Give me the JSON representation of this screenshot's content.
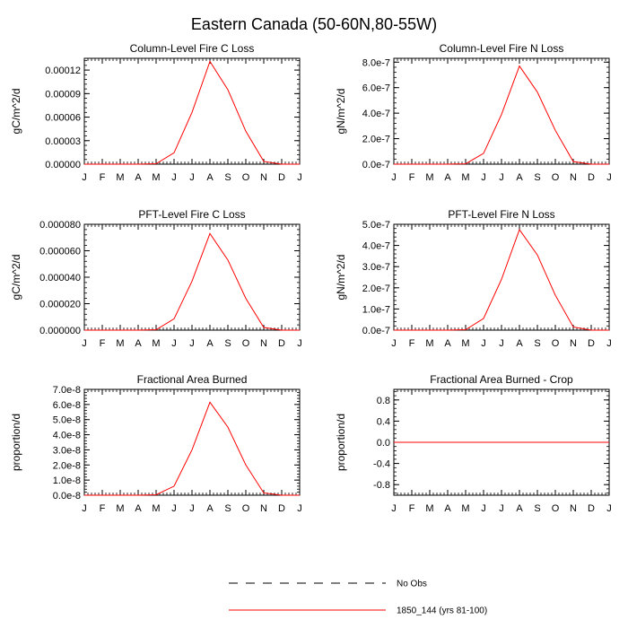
{
  "figure_title": "Eastern Canada (50-60N,80-55W)",
  "legend": [
    {
      "label": "No Obs",
      "color": "#000000",
      "style": "dashed"
    },
    {
      "label": "1850_144 (yrs 81-100)",
      "color": "#ff0000",
      "style": "solid"
    }
  ],
  "chart_data": [
    {
      "type": "line",
      "title": "Column-Level Fire C Loss",
      "ylabel": "gC/m^2/d",
      "xlabel": "",
      "x_ticks": [
        "J",
        "F",
        "M",
        "A",
        "M",
        "J",
        "J",
        "A",
        "S",
        "O",
        "N",
        "D",
        "J"
      ],
      "y_ticks": [
        "0.00000",
        "0.00003",
        "0.00006",
        "0.00009",
        "0.00012"
      ],
      "ylim": [
        0,
        0.000135
      ],
      "series": [
        {
          "name": "1850_144 (yrs 81-100)",
          "color": "#ff0000",
          "values": [
            0,
            0,
            0,
            0,
            5e-07,
            1.45e-05,
            6.6e-05,
            0.000131,
            9.5e-05,
            4.2e-05,
            3.5e-06,
            0,
            0
          ]
        }
      ]
    },
    {
      "type": "line",
      "title": "Column-Level Fire N Loss",
      "ylabel": "gN/m^2/d",
      "xlabel": "",
      "x_ticks": [
        "J",
        "F",
        "M",
        "A",
        "M",
        "J",
        "J",
        "A",
        "S",
        "O",
        "N",
        "D",
        "J"
      ],
      "y_ticks": [
        "0.0e-7",
        "2.0e-7",
        "4.0e-7",
        "6.0e-7",
        "8.0e-7"
      ],
      "ylim": [
        0,
        8.3e-07
      ],
      "series": [
        {
          "name": "1850_144 (yrs 81-100)",
          "color": "#ff0000",
          "values": [
            0,
            0,
            0,
            0,
            3e-09,
            8.5e-08,
            3.9e-07,
            7.7e-07,
            5.65e-07,
            2.65e-07,
            2e-08,
            0,
            0
          ]
        }
      ]
    },
    {
      "type": "line",
      "title": "PFT-Level Fire C Loss",
      "ylabel": "gC/m^2/d",
      "xlabel": "",
      "x_ticks": [
        "J",
        "F",
        "M",
        "A",
        "M",
        "J",
        "J",
        "A",
        "S",
        "O",
        "N",
        "D",
        "J"
      ],
      "y_ticks": [
        "0.000000",
        "0.000020",
        "0.000040",
        "0.000060",
        "0.000080"
      ],
      "ylim": [
        0,
        8e-05
      ],
      "series": [
        {
          "name": "1850_144 (yrs 81-100)",
          "color": "#ff0000",
          "values": [
            0,
            0,
            0,
            0,
            3e-07,
            8.5e-06,
            3.7e-05,
            7.3e-05,
            5.3e-05,
            2.4e-05,
            2e-06,
            0,
            0
          ]
        }
      ]
    },
    {
      "type": "line",
      "title": "PFT-Level Fire N Loss",
      "ylabel": "gN/m^2/d",
      "xlabel": "",
      "x_ticks": [
        "J",
        "F",
        "M",
        "A",
        "M",
        "J",
        "J",
        "A",
        "S",
        "O",
        "N",
        "D",
        "J"
      ],
      "y_ticks": [
        "0.0e-7",
        "1.0e-7",
        "2.0e-7",
        "3.0e-7",
        "4.0e-7",
        "5.0e-7"
      ],
      "ylim": [
        0,
        5e-07
      ],
      "series": [
        {
          "name": "1850_144 (yrs 81-100)",
          "color": "#ff0000",
          "values": [
            0,
            0,
            0,
            0,
            2e-09,
            5.5e-08,
            2.4e-07,
            4.75e-07,
            3.55e-07,
            1.65e-07,
            1.5e-08,
            0,
            0
          ]
        }
      ]
    },
    {
      "type": "line",
      "title": "Fractional Area Burned",
      "ylabel": "proportion/d",
      "xlabel": "",
      "x_ticks": [
        "J",
        "F",
        "M",
        "A",
        "M",
        "J",
        "J",
        "A",
        "S",
        "O",
        "N",
        "D",
        "J"
      ],
      "y_ticks": [
        "0.0e-8",
        "1.0e-8",
        "2.0e-8",
        "3.0e-8",
        "4.0e-8",
        "5.0e-8",
        "6.0e-8",
        "7.0e-8"
      ],
      "ylim": [
        0,
        7e-08
      ],
      "series": [
        {
          "name": "1850_144 (yrs 81-100)",
          "color": "#ff0000",
          "values": [
            0,
            0,
            0,
            0,
            3e-10,
            6e-09,
            3e-08,
            6.15e-08,
            4.5e-08,
            2e-08,
            1.5e-09,
            0,
            0
          ]
        }
      ]
    },
    {
      "type": "line",
      "title": "Fractional Area Burned - Crop",
      "ylabel": "proportion/d",
      "xlabel": "",
      "x_ticks": [
        "J",
        "F",
        "M",
        "A",
        "M",
        "J",
        "J",
        "A",
        "S",
        "O",
        "N",
        "D",
        "J"
      ],
      "y_ticks": [
        "-0.8",
        "-0.4",
        "0.0",
        "0.4",
        "0.8"
      ],
      "ylim": [
        -1.0,
        1.0
      ],
      "series": [
        {
          "name": "1850_144 (yrs 81-100)",
          "color": "#ff0000",
          "values": [
            0,
            0,
            0,
            0,
            0,
            0,
            0,
            0,
            0,
            0,
            0,
            0,
            0
          ]
        }
      ]
    }
  ]
}
